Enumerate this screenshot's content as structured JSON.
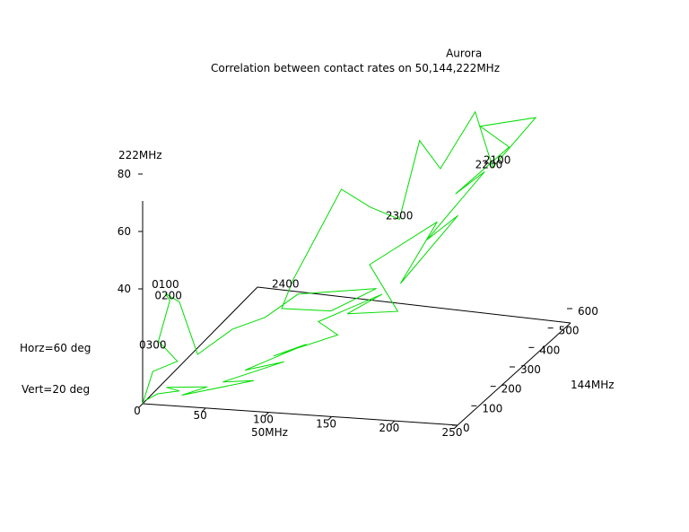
{
  "chart_data": {
    "type": "line",
    "projection": "3d",
    "title": "Correlation between contact rates on 50,144,222MHz",
    "xlabel": "50MHz",
    "ylabel": "144MHz",
    "zlabel": "222MHz",
    "view_horizontal": "Horz=60 deg",
    "view_vertical": "Vert=20 deg",
    "xlim": [
      0,
      250
    ],
    "ylim": [
      0,
      600
    ],
    "zlim": [
      0,
      90
    ],
    "xticks": [
      "0",
      "50",
      "100",
      "150",
      "200",
      "250"
    ],
    "yticks": [
      "0",
      "100",
      "200",
      "300",
      "400",
      "500",
      "600"
    ],
    "zticks": [
      "40",
      "60",
      "80"
    ],
    "color": "#00dd00",
    "annotations": [
      {
        "text": "Aurora",
        "x": 170,
        "y": 560,
        "z": 88
      },
      {
        "text": "2100",
        "x": 210,
        "y": 470,
        "z": 58
      },
      {
        "text": "2200",
        "x": 205,
        "y": 460,
        "z": 57
      },
      {
        "text": "2300",
        "x": 140,
        "y": 420,
        "z": 40
      },
      {
        "text": "2400",
        "x": 80,
        "y": 220,
        "z": 28
      },
      {
        "text": "0100",
        "x": 12,
        "y": 40,
        "z": 38
      },
      {
        "text": "0200",
        "x": 14,
        "y": 42,
        "z": 34
      },
      {
        "text": "0300",
        "x": 5,
        "y": 20,
        "z": 18
      }
    ],
    "series": [
      {
        "points": [
          [
            2,
            5,
            1
          ],
          [
            8,
            25,
            2
          ],
          [
            20,
            60,
            1
          ],
          [
            12,
            45,
            3
          ],
          [
            40,
            75,
            2
          ],
          [
            25,
            40,
            1
          ],
          [
            70,
            120,
            2
          ],
          [
            50,
            90,
            3
          ],
          [
            85,
            180,
            5
          ],
          [
            60,
            140,
            4
          ],
          [
            95,
            230,
            8
          ],
          [
            75,
            190,
            6
          ],
          [
            120,
            230,
            12
          ],
          [
            100,
            260,
            14
          ],
          [
            140,
            330,
            20
          ],
          [
            120,
            280,
            16
          ],
          [
            160,
            280,
            18
          ],
          [
            130,
            330,
            30
          ],
          [
            170,
            420,
            40
          ],
          [
            150,
            360,
            22
          ],
          [
            185,
            430,
            42
          ],
          [
            165,
            400,
            35
          ],
          [
            200,
            470,
            55
          ],
          [
            180,
            450,
            48
          ],
          [
            215,
            500,
            62
          ],
          [
            195,
            480,
            70
          ],
          [
            230,
            540,
            70
          ],
          [
            205,
            480,
            56
          ],
          [
            185,
            520,
            72
          ],
          [
            165,
            470,
            55
          ],
          [
            150,
            460,
            65
          ],
          [
            140,
            420,
            40
          ],
          [
            120,
            400,
            45
          ],
          [
            100,
            380,
            52
          ],
          [
            80,
            260,
            28
          ],
          [
            80,
            200,
            22
          ],
          [
            110,
            260,
            18
          ],
          [
            140,
            300,
            24
          ],
          [
            90,
            220,
            26
          ],
          [
            70,
            180,
            20
          ],
          [
            50,
            140,
            18
          ],
          [
            30,
            90,
            12
          ],
          [
            20,
            60,
            32
          ],
          [
            12,
            40,
            36
          ],
          [
            14,
            50,
            33
          ],
          [
            8,
            30,
            20
          ],
          [
            20,
            50,
            12
          ],
          [
            5,
            20,
            10
          ],
          [
            2,
            8,
            4
          ],
          [
            0,
            0,
            0
          ]
        ]
      }
    ]
  }
}
